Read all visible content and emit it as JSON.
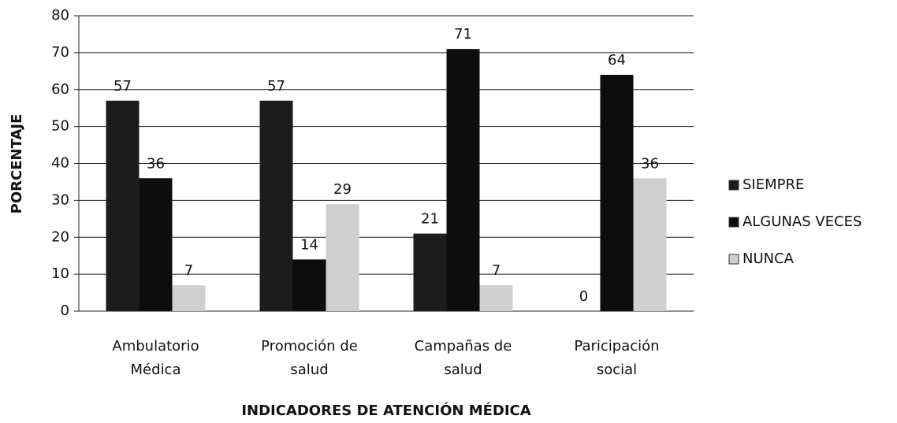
{
  "chart_data": {
    "type": "bar",
    "x_label": "INDICADORES DE ATENCIÓN MÉDICA",
    "y_label": "PORCENTAJE",
    "categories": [
      [
        "Ambulatorio",
        "Médica"
      ],
      [
        "Promoción de",
        "salud"
      ],
      [
        "Campañas de",
        "salud"
      ],
      [
        "Paricipación",
        "social"
      ]
    ],
    "series": [
      {
        "name": "SIEMPRE",
        "color": "#1c1c1c",
        "values": [
          57,
          57,
          21,
          0
        ]
      },
      {
        "name": "ALGUNAS VECES",
        "color": "#0d0d0d",
        "values": [
          36,
          14,
          71,
          64
        ]
      },
      {
        "name": "NUNCA",
        "color": "#cfcfcf",
        "values": [
          7,
          29,
          7,
          36
        ]
      }
    ],
    "ylim": [
      0,
      80
    ],
    "yticks": [
      0,
      10,
      20,
      30,
      40,
      50,
      60,
      70,
      80
    ],
    "grid": true,
    "legend": "right"
  }
}
